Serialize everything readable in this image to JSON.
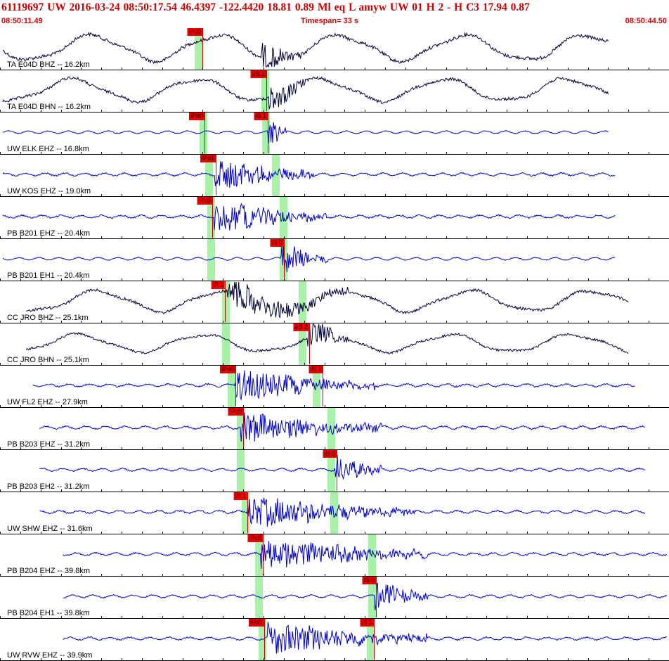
{
  "header": {
    "title": "61119697 UW 2016-03-24 08:50:17.54   46.4397 -122.4420  18.81  0.89 Ml  eq  L amyw     UW 01  H   2  -  H C3   17.94  0.87",
    "start_time": "08:50:11.49",
    "timespan": "Timespan=  33 s",
    "end_time": "08:50:44.50"
  },
  "colors": {
    "header_text": "#cc0000",
    "trace_black": "#000033",
    "trace_blue": "#0000cc",
    "pick_window": "#99ee99",
    "pick_tag": "#ee0000"
  },
  "traces": [
    {
      "label": "TA E04D BHZ -- 16.2km",
      "color": "black",
      "style": "long",
      "picks": [
        {
          "text": "iPc0",
          "pos": 0.302
        }
      ],
      "win": [
        0.295
      ],
      "x0": 0.0,
      "x1": 0.91,
      "amp": 0.32,
      "burst": [
        0.39,
        0.45
      ]
    },
    {
      "label": "TA E04D BHN -- 16.2km",
      "color": "black",
      "style": "long",
      "picks": [
        {
          "text": "eS 2",
          "pos": 0.398
        }
      ],
      "win": [
        0.395
      ],
      "x0": 0.0,
      "x1": 0.91,
      "amp": 0.28,
      "burst": [
        0.4,
        0.46
      ]
    },
    {
      "label": "UW ELK EHZ -- 16.8km",
      "color": "blue",
      "style": "short",
      "picks": [
        {
          "text": "iPd0",
          "pos": 0.306
        },
        {
          "text": "iS 1",
          "pos": 0.4
        }
      ],
      "win": [
        0.302,
        0.396
      ],
      "x0": 0.0,
      "x1": 0.91,
      "amp": 0.06,
      "burst": [
        0.4,
        0.43
      ]
    },
    {
      "label": "UW KOS EHZ -- 19.0km",
      "color": "blue",
      "style": "short",
      "picks": [
        {
          "text": "iPd1",
          "pos": 0.322
        }
      ],
      "win": [
        0.311,
        0.411
      ],
      "x0": 0.0,
      "x1": 0.92,
      "amp": 0.12,
      "burst": [
        0.32,
        0.47
      ]
    },
    {
      "label": "PB B201 EHZ -- 20.4km",
      "color": "blue",
      "style": "short",
      "picks": [
        {
          "text": "iPc0",
          "pos": 0.317
        }
      ],
      "win": [
        0.314,
        0.422
      ],
      "x0": 0.0,
      "x1": 0.92,
      "amp": 0.14,
      "burst": [
        0.32,
        0.49
      ]
    },
    {
      "label": "PB B201 EH1 -- 20.4km",
      "color": "blue",
      "style": "short",
      "picks": [
        {
          "text": "iS 0",
          "pos": 0.424
        }
      ],
      "win": [
        0.314,
        0.422
      ],
      "x0": 0.0,
      "x1": 0.92,
      "amp": 0.06,
      "burst": [
        0.42,
        0.49
      ]
    },
    {
      "label": "CC JRO BHZ -- 25.1km",
      "color": "black",
      "style": "long",
      "picks": [
        {
          "text": "iP 1",
          "pos": 0.336
        }
      ],
      "win": [
        0.336,
        0.451
      ],
      "x0": 0.035,
      "x1": 0.94,
      "amp": 0.26,
      "burst": [
        0.34,
        0.52
      ]
    },
    {
      "label": "CC JRO BHN -- 25.1km",
      "color": "black",
      "style": "long",
      "picks": [
        {
          "text": "eS 2",
          "pos": 0.462
        }
      ],
      "win": [
        0.336,
        0.451
      ],
      "x0": 0.035,
      "x1": 0.94,
      "amp": 0.22,
      "burst": [
        0.46,
        0.52
      ]
    },
    {
      "label": "UW FL2 EHZ -- 27.9km",
      "color": "blue",
      "style": "short",
      "picks": [
        {
          "text": "iPd0",
          "pos": 0.352
        },
        {
          "text": "iS 1",
          "pos": 0.482
        }
      ],
      "win": [
        0.345,
        0.472
      ],
      "x0": 0.045,
      "x1": 0.95,
      "amp": 0.14,
      "burst": [
        0.35,
        0.56
      ]
    },
    {
      "label": "PB B203 EHZ -- 31.2km",
      "color": "blue",
      "style": "short",
      "picks": [
        {
          "text": "iPc0",
          "pos": 0.363
        }
      ],
      "win": [
        0.358,
        0.494
      ],
      "x0": 0.055,
      "x1": 0.965,
      "amp": 0.14,
      "burst": [
        0.36,
        0.57
      ]
    },
    {
      "label": "PB B203 EH2 -- 31.2km",
      "color": "blue",
      "style": "short",
      "picks": [
        {
          "text": "iS 0",
          "pos": 0.503
        }
      ],
      "win": [
        0.358,
        0.494
      ],
      "x0": 0.055,
      "x1": 0.965,
      "amp": 0.1,
      "burst": [
        0.5,
        0.57
      ]
    },
    {
      "label": "UW SHW EHZ -- 31.6km",
      "color": "blue",
      "style": "short",
      "picks": [
        {
          "text": "iP 1",
          "pos": 0.37
        }
      ],
      "win": [
        0.366,
        0.498
      ],
      "x0": 0.055,
      "x1": 0.965,
      "amp": 0.13,
      "burst": [
        0.37,
        0.62
      ]
    },
    {
      "label": "PB B204 EHZ -- 39.8km",
      "color": "blue",
      "style": "short",
      "picks": [
        {
          "text": "iPc0",
          "pos": 0.393
        }
      ],
      "win": [
        0.386,
        0.555
      ],
      "x0": 0.09,
      "x1": 1.0,
      "amp": 0.13,
      "burst": [
        0.39,
        0.64
      ]
    },
    {
      "label": "PB B204 EH1 -- 39.8km",
      "color": "blue",
      "style": "short",
      "picks": [
        {
          "text": "iS 0",
          "pos": 0.562
        }
      ],
      "win": [
        0.386,
        0.555
      ],
      "x0": 0.09,
      "x1": 1.0,
      "amp": 0.1,
      "burst": [
        0.56,
        0.64
      ]
    },
    {
      "label": "UW RVW EHZ -- 39.9km",
      "color": "blue",
      "style": "short",
      "picks": [
        {
          "text": "iPd1",
          "pos": 0.395
        },
        {
          "text": "iS 1",
          "pos": 0.559
        }
      ],
      "win": [
        0.391,
        0.553
      ],
      "x0": 0.09,
      "x1": 1.0,
      "amp": 0.12,
      "burst": [
        0.4,
        0.64
      ]
    }
  ]
}
